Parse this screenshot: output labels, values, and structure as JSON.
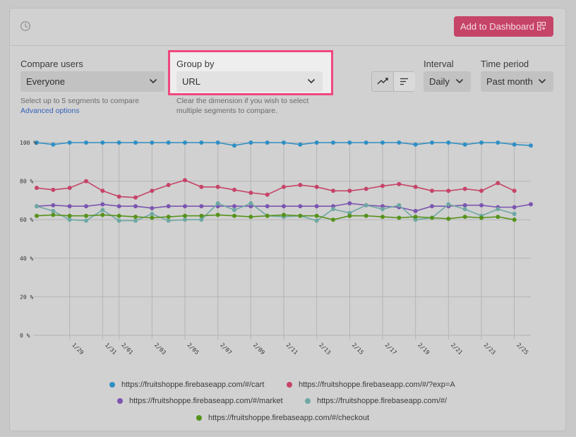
{
  "header": {
    "add_button_label": "Add to Dashboard",
    "clock_icon": "clock-icon",
    "grid_icon": "dashboard-grid-icon"
  },
  "controls": {
    "compare_users": {
      "label": "Compare users",
      "value": "Everyone",
      "help": "Select up to 5 segments to compare",
      "link": "Advanced options"
    },
    "group_by": {
      "label": "Group by",
      "value": "URL",
      "help_line1": "Clear the dimension if you wish to select",
      "help_line2": "multiple segments to compare."
    },
    "interval": {
      "label": "Interval",
      "value": "Daily"
    },
    "time_period": {
      "label": "Time period",
      "value": "Past month"
    },
    "chart_type_icons": [
      "line-chart-icon",
      "bar-list-icon"
    ]
  },
  "colors": {
    "cart": "#2f8fc4",
    "exp": "#c64468",
    "market": "#7b55b0",
    "root": "#6fa8a3",
    "checkout": "#56921c",
    "highlight": "#f0487e",
    "button": "#c64468"
  },
  "chart_data": {
    "type": "line",
    "y_tick_labels": [
      "0 %",
      "20 %",
      "40 %",
      "60 %",
      "80 %",
      "100 %"
    ],
    "ylim": [
      0,
      100
    ],
    "x": [
      "1/27",
      "1/28",
      "1/29",
      "1/30",
      "1/31",
      "2/01",
      "2/02",
      "2/03",
      "2/04",
      "2/05",
      "2/06",
      "2/07",
      "2/08",
      "2/09",
      "2/10",
      "2/11",
      "2/12",
      "2/13",
      "2/14",
      "2/15",
      "2/16",
      "2/17",
      "2/18",
      "2/19",
      "2/20",
      "2/21",
      "2/22",
      "2/23",
      "2/24",
      "2/25",
      "2/26"
    ],
    "x_tick_labels": [
      "1/29",
      "1/31",
      "2/01",
      "2/03",
      "2/05",
      "2/07",
      "2/09",
      "2/11",
      "2/13",
      "2/15",
      "2/17",
      "2/19",
      "2/21",
      "2/23",
      "2/25"
    ],
    "series": [
      {
        "name": "https://fruitshoppe.firebaseapp.com/#/cart",
        "color_key": "cart",
        "values": [
          100,
          99,
          100,
          100,
          100,
          100,
          100,
          100,
          100,
          100,
          100,
          100,
          98.5,
          100,
          100,
          100,
          99,
          100,
          100,
          100,
          100,
          100,
          100,
          99,
          100,
          100,
          99,
          100,
          100,
          99,
          98.5
        ]
      },
      {
        "name": "https://fruitshoppe.firebaseapp.com/#/?exp=A",
        "color_key": "exp",
        "values": [
          76.5,
          75.5,
          76.5,
          80,
          75,
          72,
          71.5,
          75,
          78,
          80.5,
          77,
          77,
          75.5,
          74,
          73,
          77,
          78,
          77,
          75,
          75,
          76,
          77.5,
          78.5,
          77,
          75,
          75,
          76,
          75,
          79,
          75,
          null
        ]
      },
      {
        "name": "https://fruitshoppe.firebaseapp.com/#/market",
        "color_key": "market",
        "values": [
          67,
          67.5,
          67,
          67,
          68,
          67,
          67,
          66,
          67,
          67,
          67,
          67,
          67,
          67,
          67,
          67,
          67,
          67,
          67,
          68.5,
          67.5,
          67,
          66.5,
          64.5,
          67,
          67,
          67.5,
          67.5,
          66.5,
          66.5,
          68
        ]
      },
      {
        "name": "https://fruitshoppe.firebaseapp.com/#/",
        "color_key": "root",
        "values": [
          67,
          64.5,
          60,
          59.5,
          65,
          59.5,
          59.5,
          63,
          59.5,
          60,
          60,
          68.5,
          65,
          68.5,
          62,
          61.5,
          62,
          59.5,
          65.5,
          63.5,
          67.5,
          65.5,
          67.5,
          60,
          61,
          68,
          65.5,
          62,
          65.5,
          63,
          null
        ]
      },
      {
        "name": "https://fruitshoppe.firebaseapp.com/#/checkout",
        "color_key": "checkout",
        "values": [
          62,
          62.5,
          62,
          62,
          62.5,
          62,
          61.5,
          61,
          61.5,
          62,
          62,
          62.5,
          62,
          61.5,
          62,
          62.5,
          62,
          62,
          60,
          62,
          62,
          61.5,
          61,
          61.5,
          61,
          60.5,
          61.5,
          61,
          61.5,
          60,
          null
        ]
      }
    ],
    "legend": "bottom-center"
  }
}
